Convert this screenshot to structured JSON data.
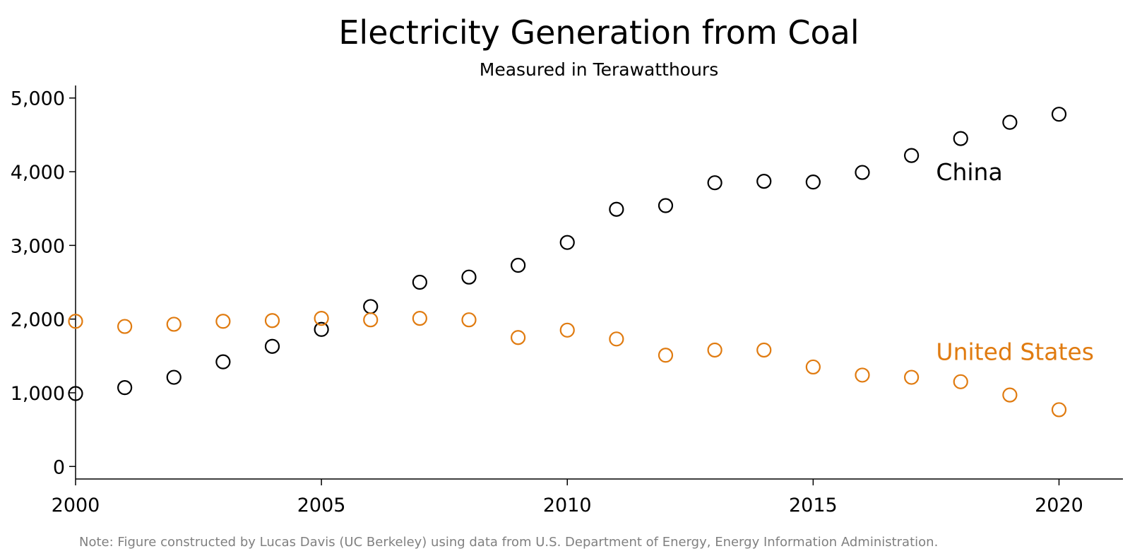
{
  "chart_data": {
    "type": "scatter",
    "title": "Electricity Generation from Coal",
    "subtitle": "Measured in Terawatthours",
    "xlabel": "",
    "ylabel": "",
    "xlim": [
      2000,
      2021.3
    ],
    "ylim": [
      -170,
      5170
    ],
    "x_ticks": [
      2000,
      2005,
      2010,
      2015,
      2020
    ],
    "x_tick_labels": [
      "2000",
      "2005",
      "2010",
      "2015",
      "2020"
    ],
    "y_ticks": [
      0,
      1000,
      2000,
      3000,
      4000,
      5000
    ],
    "y_tick_labels": [
      "0",
      "1,000",
      "2,000",
      "3,000",
      "4,000",
      "5,000"
    ],
    "grid": false,
    "legend": "direct labels on plot",
    "series": [
      {
        "name": "China",
        "color": "#000000",
        "label_x": 2017.5,
        "label_y": 4000,
        "x": [
          2000,
          2001,
          2002,
          2003,
          2004,
          2005,
          2006,
          2007,
          2008,
          2009,
          2010,
          2011,
          2012,
          2013,
          2014,
          2015,
          2016,
          2017,
          2018,
          2019,
          2020
        ],
        "y": [
          990,
          1070,
          1210,
          1420,
          1630,
          1860,
          2170,
          2500,
          2570,
          2730,
          3040,
          3490,
          3540,
          3850,
          3870,
          3860,
          3990,
          4220,
          4450,
          4670,
          4780
        ]
      },
      {
        "name": "United States",
        "color": "#E07B10",
        "label_x": 2017.5,
        "label_y": 1560,
        "x": [
          2000,
          2001,
          2002,
          2003,
          2004,
          2005,
          2006,
          2007,
          2008,
          2009,
          2010,
          2011,
          2012,
          2013,
          2014,
          2015,
          2016,
          2017,
          2018,
          2019,
          2020
        ],
        "y": [
          1970,
          1900,
          1930,
          1970,
          1980,
          2010,
          1990,
          2010,
          1990,
          1750,
          1850,
          1730,
          1510,
          1580,
          1580,
          1350,
          1240,
          1210,
          1150,
          970,
          770
        ]
      }
    ]
  },
  "note": "Note: Figure constructed by Lucas Davis (UC Berkeley) using data from U.S. Department of Energy, Energy Information Administration."
}
